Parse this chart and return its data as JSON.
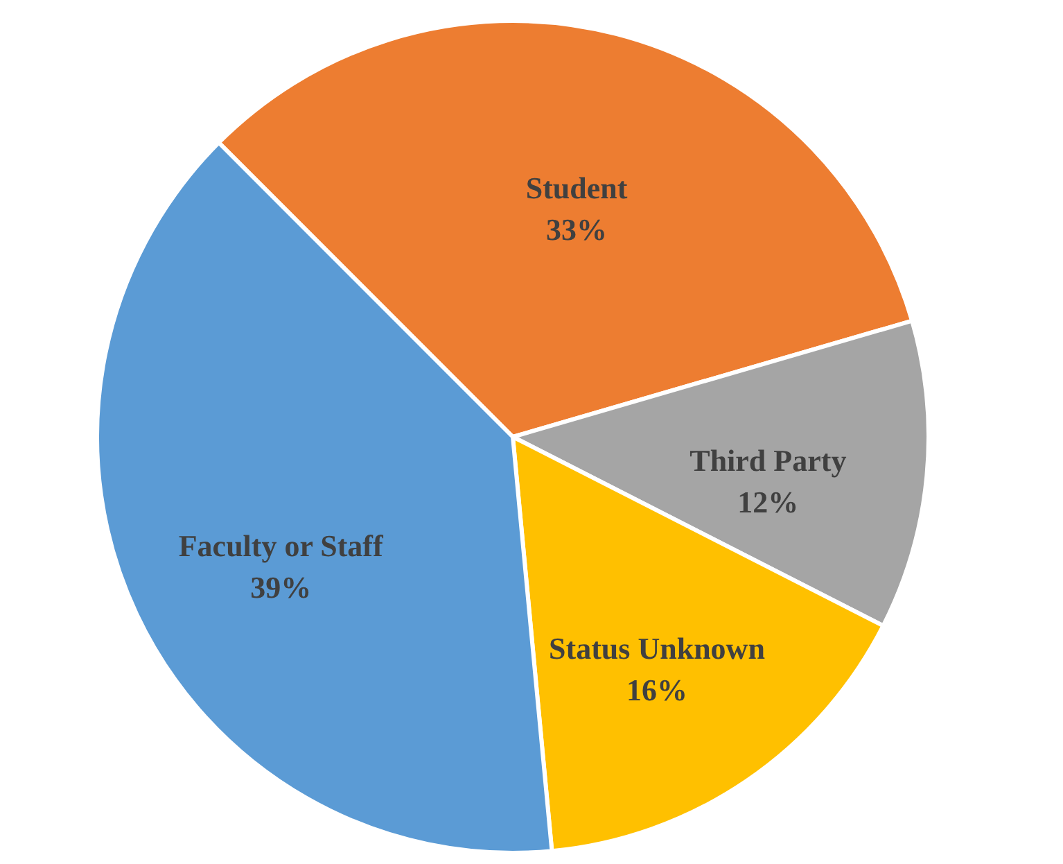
{
  "chart_data": {
    "type": "pie",
    "categories": [
      "Student",
      "Third Party",
      "Status Unknown",
      "Faculty or Staff"
    ],
    "values": [
      33,
      12,
      16,
      39
    ],
    "colors": [
      "#ed7d31",
      "#a5a5a5",
      "#ffc000",
      "#5b9bd5"
    ],
    "value_labels": [
      "33%",
      "12%",
      "16%",
      "39%"
    ]
  }
}
